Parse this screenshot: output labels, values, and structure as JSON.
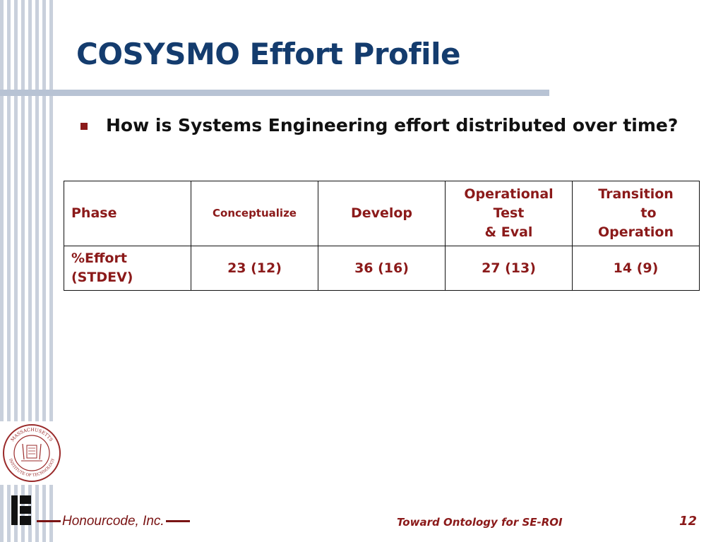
{
  "slide": {
    "title": "COSYSMO Effort Profile",
    "bullet": "How is Systems Engineering effort distributed over time?"
  },
  "table": {
    "header": {
      "phase": "Phase",
      "conceptualize": "Conceptualize",
      "develop": "Develop",
      "op_test_1": "Operational",
      "op_test_2": "Test",
      "op_test_3": "& Eval",
      "transition_1": "Transition",
      "transition_2": "to",
      "transition_3": "Operation"
    },
    "row": {
      "label_1": "%Effort",
      "label_2": "(STDEV)",
      "conceptualize": "23 (12)",
      "develop": "36 (16)",
      "op_test": "27 (13)",
      "transition": "14 (9)"
    }
  },
  "footer": {
    "company": "Honourcode, Inc.",
    "title": "Toward Ontology for SE-ROI",
    "page": "12"
  },
  "seal": {
    "top_text": "MASSACHUSETTS",
    "bottom_text": "INSTITUTE OF TECHNOLOGY"
  },
  "colors": {
    "title": "#143c6e",
    "accent": "#8b1a1a",
    "stripe": "#c9d0dc"
  }
}
